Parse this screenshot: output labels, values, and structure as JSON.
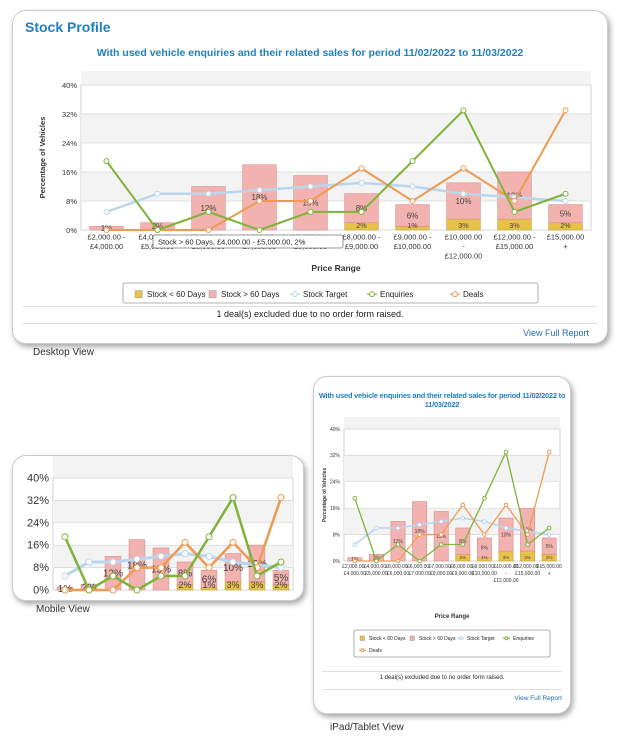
{
  "desktop": {
    "card_title": "Stock Profile",
    "chart_title": "With used vehicle enquiries and their related sales for period 11/02/2022 to 11/03/2022",
    "note": "1 deal(s) excluded due to no order form raised.",
    "link": "View Full Report",
    "tooltip": "Stock > 60 Days, £4,000.00 - £5,000.00, 2%",
    "caption": "Desktop View"
  },
  "mobile": {
    "caption": "Mobile View"
  },
  "tablet": {
    "chart_title": "With used vehicle enquiries and their related sales for period 11/02/2022 to 11/03/2022",
    "note": "1 deal(s) excluded due to no order form raised.",
    "link": "View Full Report",
    "caption": "iPad/Tablet View"
  },
  "colors": {
    "title": "#1f7fc0",
    "stock_lt60": "#e8c14a",
    "stock_gt60": "#f2b3b0",
    "stock_target": "#b9d6ee",
    "enquiries": "#7fb33a",
    "deals": "#ef9a52"
  },
  "chart_data": {
    "type": "bar",
    "xlabel": "Price Range",
    "ylabel": "Percentage of Vehicles",
    "ylim": [
      0,
      40
    ],
    "yticks": [
      "0%",
      "8%",
      "16%",
      "24%",
      "32%",
      "40%"
    ],
    "categories": [
      [
        "£2,000.00 -",
        "£4,000.00"
      ],
      [
        "£4,000.00 -",
        "£5,000.00"
      ],
      [
        "£5,000.00 -",
        "£6,000.00"
      ],
      [
        "£6,000.00 -",
        "£7,000.00"
      ],
      [
        "£7,000.00 -",
        "£8,000.00"
      ],
      [
        "£8,000.00 -",
        "£9,000.00"
      ],
      [
        "£9,000.00 -",
        "£10,000.00"
      ],
      [
        "£10,000.00",
        "-",
        "£12,000.00"
      ],
      [
        "£12,000.00 -",
        "£15,000.00"
      ],
      [
        "£15,000.00",
        "+"
      ]
    ],
    "series": [
      {
        "name": "Stock < 60 Days",
        "kind": "bar",
        "values": [
          0,
          0,
          0,
          0,
          0,
          2,
          1,
          3,
          3,
          2
        ]
      },
      {
        "name": "Stock > 60 Days",
        "kind": "bar",
        "values": [
          1,
          2,
          12,
          18,
          15,
          8,
          6,
          10,
          13,
          5
        ]
      },
      {
        "name": "Stock Target",
        "kind": "line",
        "values": [
          5,
          10,
          10,
          11,
          12,
          13,
          12,
          10,
          9,
          8
        ]
      },
      {
        "name": "Enquiries",
        "kind": "line",
        "values": [
          19,
          0,
          5,
          0,
          5,
          5,
          19,
          33,
          5,
          10
        ]
      },
      {
        "name": "Deals",
        "kind": "line",
        "values": [
          0,
          0,
          0,
          8,
          8,
          17,
          8,
          17,
          8,
          33
        ]
      }
    ],
    "bar_labels": [
      "1%",
      "2%",
      "12%",
      "18%",
      "15%",
      "8%",
      "6%",
      "10%",
      "13%",
      "5%"
    ],
    "low_labels": [
      "",
      "",
      "",
      "",
      "",
      "2%",
      "1%",
      "3%",
      "3%",
      "2%"
    ],
    "legend": "bottom"
  }
}
